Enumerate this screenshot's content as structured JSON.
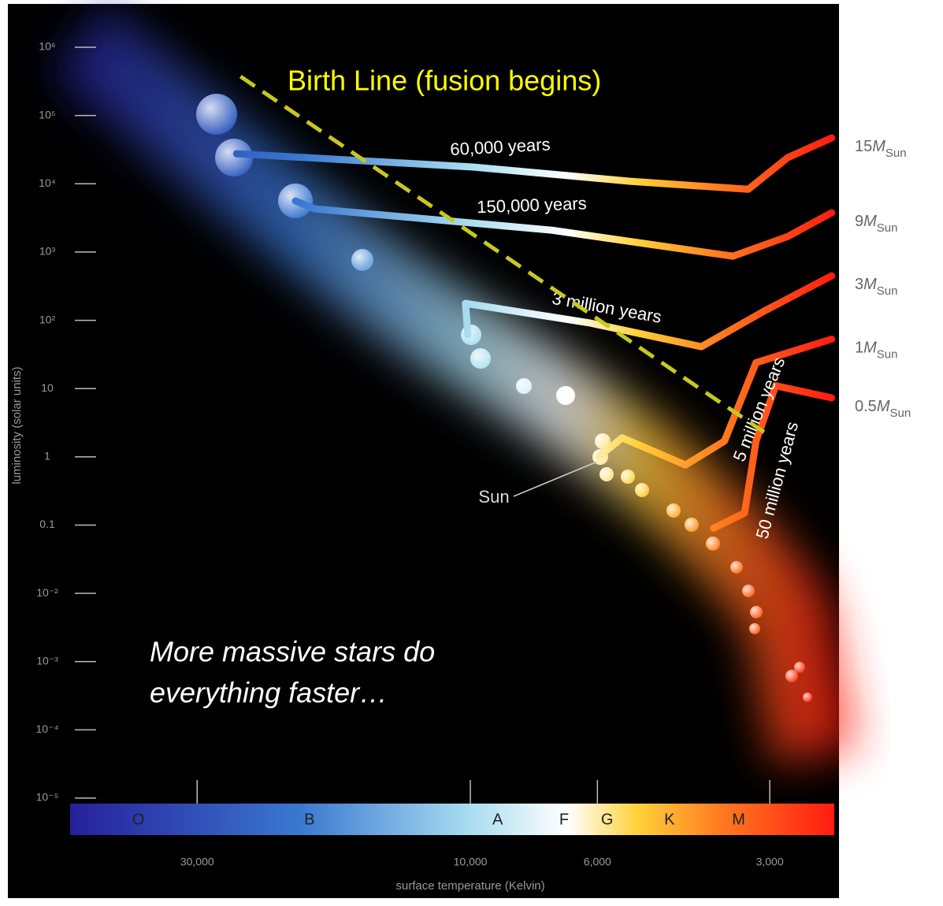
{
  "chart_data": {
    "type": "line",
    "xscale": "log",
    "yscale": "log",
    "x_label": "surface temperature (Kelvin)",
    "y_label": "luminosity (solar units)",
    "xlim": [
      50000,
      2300
    ],
    "ylim": [
      1e-05,
      3000000
    ],
    "xticks": [
      {
        "value": 30000,
        "label": "30,000"
      },
      {
        "value": 10000,
        "label": "10,000"
      },
      {
        "value": 6000,
        "label": "6,000"
      },
      {
        "value": 3000,
        "label": "3,000"
      }
    ],
    "yticks": [
      {
        "value": 1000000,
        "label": "10⁶"
      },
      {
        "value": 100000,
        "label": "10⁵"
      },
      {
        "value": 10000,
        "label": "10⁴"
      },
      {
        "value": 1000,
        "label": "10³"
      },
      {
        "value": 100,
        "label": "10²"
      },
      10,
      1,
      0.1,
      {
        "value": 0.01,
        "label": "10⁻²"
      },
      {
        "value": 0.001,
        "label": "10⁻³"
      },
      {
        "value": 0.0001,
        "label": "10⁻⁴"
      },
      {
        "value": 1e-05,
        "label": "10⁻⁵"
      }
    ],
    "series": [
      {
        "name": "15MSun",
        "x": [
          2340,
          2790,
          3270,
          5260,
          9900,
          25600
        ],
        "values": [
          47000,
          24200,
          8300,
          10900,
          17600,
          27600
        ]
      },
      {
        "name": "9MSun",
        "x": [
          2340,
          2790,
          3480,
          7210,
          18700,
          20200
        ],
        "values": [
          3760,
          1690,
          870,
          2090,
          4300,
          5600
        ]
      },
      {
        "name": "3MSun",
        "x": [
          2340,
          3070,
          3950,
          6170,
          10200,
          10100
        ],
        "values": [
          448,
          136,
          41,
          91,
          177,
          61
        ]
      },
      {
        "name": "1MSun",
        "x": [
          2340,
          3170,
          3600,
          4210,
          5430,
          5970
        ],
        "values": [
          53,
          24,
          1.7,
          0.76,
          1.9,
          1.0
        ]
      },
      {
        "name": "0.5MSun",
        "x": [
          2340,
          2930,
          3170,
          3320,
          3760
        ],
        "values": [
          7.3,
          11,
          1.7,
          0.15,
          0.09
        ]
      }
    ],
    "birth_line": {
      "label": "Birth Line (fusion begins)",
      "x": [
        25200,
        3070
      ],
      "values": [
        374000,
        2.3
      ],
      "color": "#c8c820"
    },
    "track_labels": [
      "60,000 years",
      "150,000 years",
      "3 million years",
      "5 million years",
      "50 million years"
    ],
    "sun_label": "Sun",
    "note": [
      "More massive stars do",
      "everything faster…"
    ],
    "spectral_classes": {
      "labels": [
        "O",
        "B",
        "A",
        "F",
        "G",
        "K",
        "M"
      ],
      "x": [
        38000,
        19100,
        8960,
        6860,
        5770,
        4490,
        3400
      ]
    }
  }
}
